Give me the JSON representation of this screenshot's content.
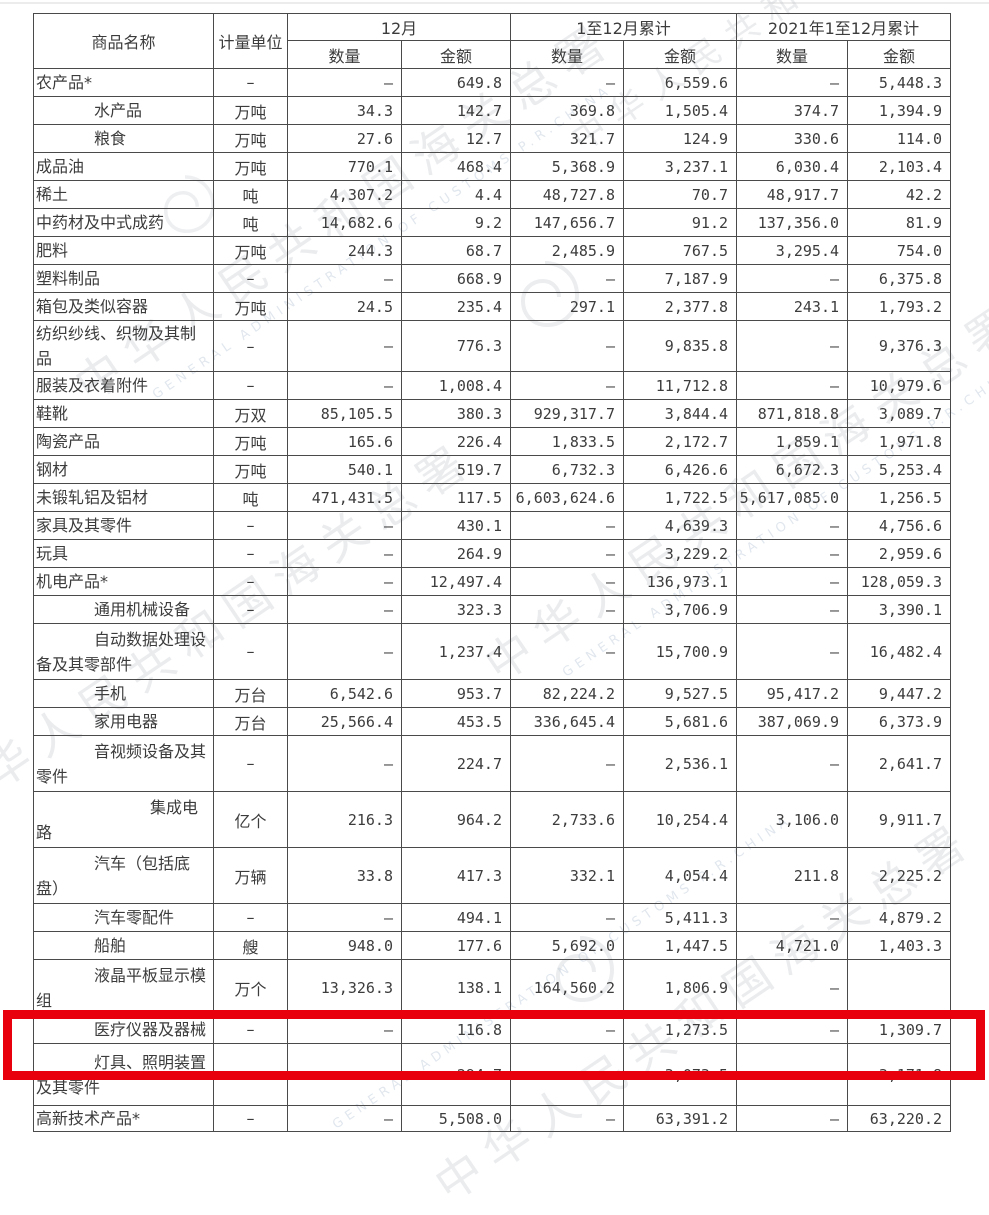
{
  "header": {
    "col_product": "商品名称",
    "col_unit": "计量单位",
    "group_december": "12月",
    "group_cumulative": "1至12月累计",
    "group_prev_year": "2021年1至12月累计",
    "sub_quantity": "数量",
    "sub_amount": "金额"
  },
  "highlight": {
    "color": "#e8000d",
    "highlighted_row": "灯具、照明装置及其零件"
  },
  "watermark": {
    "cn": "中华人民共和国海关总署",
    "en": "GENERAL ADMINISTRATION OF CUSTOMS P.R.CHINA"
  },
  "dash": "–",
  "rows": [
    {
      "name_lines": [
        "农产品*"
      ],
      "indent": 0,
      "unit": "–",
      "values": [
        "–",
        "649.8",
        "–",
        "6,559.6",
        "–",
        "5,448.3"
      ]
    },
    {
      "name_lines": [
        "水产品"
      ],
      "indent": 58,
      "unit": "万吨",
      "values": [
        "34.3",
        "142.7",
        "369.8",
        "1,505.4",
        "374.7",
        "1,394.9"
      ]
    },
    {
      "name_lines": [
        "粮食"
      ],
      "indent": 58,
      "unit": "万吨",
      "values": [
        "27.6",
        "12.7",
        "321.7",
        "124.9",
        "330.6",
        "114.0"
      ]
    },
    {
      "name_lines": [
        "成品油"
      ],
      "indent": 0,
      "unit": "万吨",
      "values": [
        "770.1",
        "468.4",
        "5,368.9",
        "3,237.1",
        "6,030.4",
        "2,103.4"
      ]
    },
    {
      "name_lines": [
        "稀土"
      ],
      "indent": 0,
      "unit": "吨",
      "values": [
        "4,307.2",
        "4.4",
        "48,727.8",
        "70.7",
        "48,917.7",
        "42.2"
      ]
    },
    {
      "name_lines": [
        "中药材及中式成药"
      ],
      "indent": 0,
      "unit": "吨",
      "values": [
        "14,682.6",
        "9.2",
        "147,656.7",
        "91.2",
        "137,356.0",
        "81.9"
      ]
    },
    {
      "name_lines": [
        "肥料"
      ],
      "indent": 0,
      "unit": "万吨",
      "values": [
        "244.3",
        "68.7",
        "2,485.9",
        "767.5",
        "3,295.4",
        "754.0"
      ]
    },
    {
      "name_lines": [
        "塑料制品"
      ],
      "indent": 0,
      "unit": "–",
      "values": [
        "–",
        "668.9",
        "–",
        "7,187.9",
        "–",
        "6,375.8"
      ]
    },
    {
      "name_lines": [
        "箱包及类似容器"
      ],
      "indent": 0,
      "unit": "万吨",
      "values": [
        "24.5",
        "235.4",
        "297.1",
        "2,377.8",
        "243.1",
        "1,793.2"
      ]
    },
    {
      "name_lines": [
        "纺织纱线、织物及其制品"
      ],
      "indent": 0,
      "unit": "–",
      "values": [
        "–",
        "776.3",
        "–",
        "9,835.8",
        "–",
        "9,376.3"
      ]
    },
    {
      "name_lines": [
        "服装及衣着附件"
      ],
      "indent": 0,
      "unit": "–",
      "values": [
        "–",
        "1,008.4",
        "–",
        "11,712.8",
        "–",
        "10,979.6"
      ]
    },
    {
      "name_lines": [
        "鞋靴"
      ],
      "indent": 0,
      "unit": "万双",
      "values": [
        "85,105.5",
        "380.3",
        "929,317.7",
        "3,844.4",
        "871,818.8",
        "3,089.7"
      ]
    },
    {
      "name_lines": [
        "陶瓷产品"
      ],
      "indent": 0,
      "unit": "万吨",
      "values": [
        "165.6",
        "226.4",
        "1,833.5",
        "2,172.7",
        "1,859.1",
        "1,971.8"
      ]
    },
    {
      "name_lines": [
        "钢材"
      ],
      "indent": 0,
      "unit": "万吨",
      "values": [
        "540.1",
        "519.7",
        "6,732.3",
        "6,426.6",
        "6,672.3",
        "5,253.4"
      ]
    },
    {
      "name_lines": [
        "未锻轧铝及铝材"
      ],
      "indent": 0,
      "unit": "吨",
      "values": [
        "471,431.5",
        "117.5",
        "6,603,624.6",
        "1,722.5",
        "5,617,085.0",
        "1,256.5"
      ]
    },
    {
      "name_lines": [
        "家具及其零件"
      ],
      "indent": 0,
      "unit": "–",
      "values": [
        "–",
        "430.1",
        "–",
        "4,639.3",
        "–",
        "4,756.6"
      ]
    },
    {
      "name_lines": [
        "玩具"
      ],
      "indent": 0,
      "unit": "–",
      "values": [
        "–",
        "264.9",
        "–",
        "3,229.2",
        "–",
        "2,959.6"
      ]
    },
    {
      "name_lines": [
        "机电产品*"
      ],
      "indent": 0,
      "unit": "–",
      "values": [
        "–",
        "12,497.4",
        "–",
        "136,973.1",
        "–",
        "128,059.3"
      ]
    },
    {
      "name_lines": [
        "通用机械设备"
      ],
      "indent": 58,
      "unit": "–",
      "values": [
        "–",
        "323.3",
        "–",
        "3,706.9",
        "–",
        "3,390.1"
      ]
    },
    {
      "name_lines": [
        "自动数据处理设",
        "备及其零部件"
      ],
      "indent": 58,
      "unit": "–",
      "values": [
        "–",
        "1,237.4",
        "–",
        "15,700.9",
        "–",
        "16,482.4"
      ]
    },
    {
      "name_lines": [
        "手机"
      ],
      "indent": 58,
      "unit": "万台",
      "values": [
        "6,542.6",
        "953.7",
        "82,224.2",
        "9,527.5",
        "95,417.2",
        "9,447.2"
      ]
    },
    {
      "name_lines": [
        "家用电器"
      ],
      "indent": 58,
      "unit": "万台",
      "values": [
        "25,566.4",
        "453.5",
        "336,645.4",
        "5,681.6",
        "387,069.9",
        "6,373.9"
      ]
    },
    {
      "name_lines": [
        "音视频设备及其",
        "零件"
      ],
      "indent": 58,
      "unit": "–",
      "values": [
        "–",
        "224.7",
        "–",
        "2,536.1",
        "–",
        "2,641.7"
      ]
    },
    {
      "name_lines": [
        "集成电",
        "路"
      ],
      "indent": 114,
      "unit": "亿个",
      "values": [
        "216.3",
        "964.2",
        "2,733.6",
        "10,254.4",
        "3,106.0",
        "9,911.7"
      ]
    },
    {
      "name_lines": [
        "汽车（包括底",
        "盘）"
      ],
      "indent": 58,
      "unit": "万辆",
      "values": [
        "33.8",
        "417.3",
        "332.1",
        "4,054.4",
        "211.8",
        "2,225.2"
      ]
    },
    {
      "name_lines": [
        "汽车零配件"
      ],
      "indent": 58,
      "unit": "–",
      "values": [
        "–",
        "494.1",
        "–",
        "5,411.3",
        "–",
        "4,879.2"
      ]
    },
    {
      "name_lines": [
        "船舶"
      ],
      "indent": 58,
      "unit": "艘",
      "values": [
        "948.0",
        "177.6",
        "5,692.0",
        "1,447.5",
        "4,721.0",
        "1,403.3"
      ]
    },
    {
      "name_lines": [
        "液晶平板显示模",
        "组"
      ],
      "indent": 58,
      "unit": "万个",
      "values": [
        "13,326.3",
        "138.1",
        "164,560.2",
        "1,806.9",
        "–",
        ""
      ]
    },
    {
      "name_lines": [
        "医疗仪器及器械"
      ],
      "indent": 58,
      "unit": "–",
      "values": [
        "–",
        "116.8",
        "–",
        "1,273.5",
        "–",
        "1,309.7"
      ]
    },
    {
      "name_lines": [
        "灯具、照明装置",
        "及其零件"
      ],
      "indent": 58,
      "unit": "–",
      "values": [
        "–",
        "294.7",
        "–",
        "3,073.5",
        "–",
        "3,171.8"
      ],
      "highlighted": true
    },
    {
      "name_lines": [
        "高新技术产品*"
      ],
      "indent": 0,
      "unit": "–",
      "values": [
        "–",
        "5,508.0",
        "–",
        "63,391.2",
        "–",
        "63,220.2"
      ],
      "clipped": true
    }
  ]
}
